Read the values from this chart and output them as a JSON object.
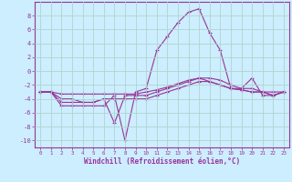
{
  "xlabel": "Windchill (Refroidissement éolien,°C)",
  "background_color": "#cceeff",
  "grid_color": "#aaddcc",
  "line_color": "#993399",
  "marker_color": "#993399",
  "ylim": [
    -11,
    10
  ],
  "xlim": [
    -0.5,
    23.5
  ],
  "yticks": [
    -10,
    -8,
    -6,
    -4,
    -2,
    0,
    2,
    4,
    6,
    8
  ],
  "xticks": [
    0,
    1,
    2,
    3,
    4,
    5,
    6,
    7,
    8,
    9,
    10,
    11,
    12,
    13,
    14,
    15,
    16,
    17,
    18,
    19,
    20,
    21,
    22,
    23
  ],
  "series": [
    {
      "x": [
        0,
        1,
        2,
        3,
        4,
        5,
        6,
        7,
        8,
        9,
        10,
        11,
        12,
        13,
        14,
        15,
        16,
        17,
        18,
        19,
        20,
        21,
        22,
        23
      ],
      "y": [
        -3,
        -3,
        -5,
        -5,
        -5,
        -5,
        -5,
        -3.5,
        -10,
        -3,
        -2.5,
        3,
        5,
        7,
        8.5,
        9,
        5.5,
        3,
        -2.5,
        -2.5,
        -1,
        -3.5,
        -3.5,
        -3
      ]
    },
    {
      "x": [
        0,
        1,
        2,
        3,
        4,
        5,
        6,
        7,
        8,
        9,
        10,
        11,
        12,
        13,
        14,
        15,
        16,
        17,
        18,
        19,
        20,
        21,
        22,
        23
      ],
      "y": [
        -3,
        -3,
        -3.3,
        -3.3,
        -3.3,
        -3.3,
        -3.3,
        -3.3,
        -3.3,
        -3.3,
        -3,
        -2.7,
        -2.3,
        -1.8,
        -1.3,
        -1,
        -1,
        -1.3,
        -2,
        -2.5,
        -2.5,
        -3,
        -3,
        -3
      ]
    },
    {
      "x": [
        0,
        1,
        2,
        3,
        4,
        5,
        6,
        7,
        8,
        9,
        10,
        11,
        12,
        13,
        14,
        15,
        16,
        17,
        18,
        19,
        20,
        21,
        22,
        23
      ],
      "y": [
        -3,
        -3,
        -4,
        -4,
        -4.5,
        -4.5,
        -4,
        -4,
        -4,
        -4,
        -4,
        -3.5,
        -3,
        -2.5,
        -2,
        -1.5,
        -1.5,
        -2,
        -2.5,
        -2.7,
        -3,
        -3,
        -3.5,
        -3
      ]
    },
    {
      "x": [
        0,
        1,
        2,
        3,
        4,
        5,
        6,
        7,
        8,
        9,
        10,
        11,
        12,
        13,
        14,
        15,
        16,
        17,
        18,
        19,
        20,
        21,
        22,
        23
      ],
      "y": [
        -3,
        -3,
        -4.5,
        -4.5,
        -4.5,
        -4.5,
        -4,
        -7.5,
        -3.5,
        -3.5,
        -3.5,
        -3,
        -2.5,
        -2,
        -1.5,
        -1,
        -1.5,
        -2,
        -2.5,
        -2.7,
        -3,
        -3,
        -3.5,
        -3
      ]
    }
  ]
}
